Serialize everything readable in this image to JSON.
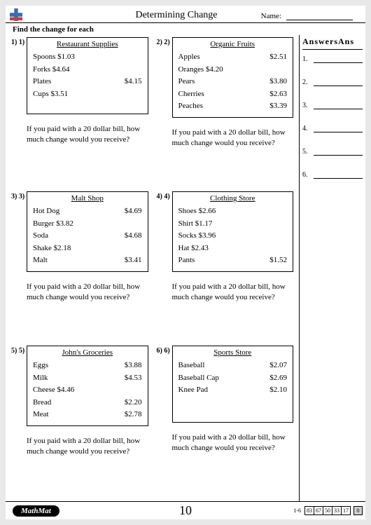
{
  "title": "Determining Change",
  "name_label": "Name:",
  "instruction": "Find the change for each",
  "problems": [
    {
      "num": "1) 1)",
      "title": "Restaurant Supplies",
      "items": [
        {
          "name": "Spoons",
          "price": "$1.03",
          "inline": true
        },
        {
          "name": "Forks",
          "price": "$4.64",
          "inline": true
        },
        {
          "name": "Plates",
          "price": "$4.15",
          "inline": false
        },
        {
          "name": "Cups",
          "price": "$3.51",
          "inline": true
        }
      ],
      "question": "If you paid with a 20 dollar bill, how much change would you receive?"
    },
    {
      "num": "2) 2)",
      "title": "Organic Fruits",
      "items": [
        {
          "name": "Apples",
          "price": "$2.51",
          "inline": false
        },
        {
          "name": "Oranges",
          "price": "$4.20",
          "inline": true
        },
        {
          "name": "Pears",
          "price": "$3.80",
          "inline": false
        },
        {
          "name": "Cherries",
          "price": "$2.63",
          "inline": false
        },
        {
          "name": "Peaches",
          "price": "$3.39",
          "inline": false
        }
      ],
      "question": "If you paid with a 20 dollar bill, how much change would you receive?"
    },
    {
      "num": "3) 3)",
      "title": "Malt Shop",
      "items": [
        {
          "name": "Hot Dog",
          "price": "$4.69",
          "inline": false
        },
        {
          "name": "Burger",
          "price": "$3.82",
          "inline": true
        },
        {
          "name": "Soda",
          "price": "$4.68",
          "inline": false
        },
        {
          "name": "Shake",
          "price": "$2.18",
          "inline": true
        },
        {
          "name": "Malt",
          "price": "$3.41",
          "inline": false
        }
      ],
      "question": "If you paid with a 20 dollar bill, how much change would you receive?"
    },
    {
      "num": "4) 4)",
      "title": "Clothing Store",
      "items": [
        {
          "name": "Shoes",
          "price": "$2.66",
          "inline": true
        },
        {
          "name": "Shirt",
          "price": "$1.17",
          "inline": true
        },
        {
          "name": "Socks",
          "price": "$3.96",
          "inline": true
        },
        {
          "name": "Hat",
          "price": "$2.43",
          "inline": true
        },
        {
          "name": "Pants",
          "price": "$1.52",
          "inline": false
        }
      ],
      "question": "If you paid with a 20 dollar bill, how much change would you receive?"
    },
    {
      "num": "5) 5)",
      "title": "John's Groceries",
      "items": [
        {
          "name": "Eggs",
          "price": "$3.88",
          "inline": false
        },
        {
          "name": "Milk",
          "price": "$4.53",
          "inline": false
        },
        {
          "name": "Cheese",
          "price": "$4.46",
          "inline": true
        },
        {
          "name": "Bread",
          "price": "$2.20",
          "inline": false
        },
        {
          "name": "Meat",
          "price": "$2.78",
          "inline": false
        }
      ],
      "question": "If you paid with a 20 dollar bill, how much change would you receive?"
    },
    {
      "num": "6) 6)",
      "title": "Sports Store",
      "items": [
        {
          "name": "Baseball",
          "price": "$2.07",
          "inline": false
        },
        {
          "name": "Baseball Cap",
          "price": "$2.69",
          "inline": false
        },
        {
          "name": "Knee Pad",
          "price": "$2.10",
          "inline": false
        }
      ],
      "question": "If you paid with a 20 dollar bill, how much change would you receive?"
    }
  ],
  "answers": {
    "heading": "AnswersAns",
    "rows": [
      "1.",
      "2.",
      "3.",
      "4.",
      "5.",
      "6."
    ]
  },
  "footer": {
    "badge": "MathMat",
    "page_number": "10",
    "range": "1-6",
    "scores": [
      "83",
      "67",
      "50",
      "33",
      "17"
    ],
    "final": "0"
  }
}
